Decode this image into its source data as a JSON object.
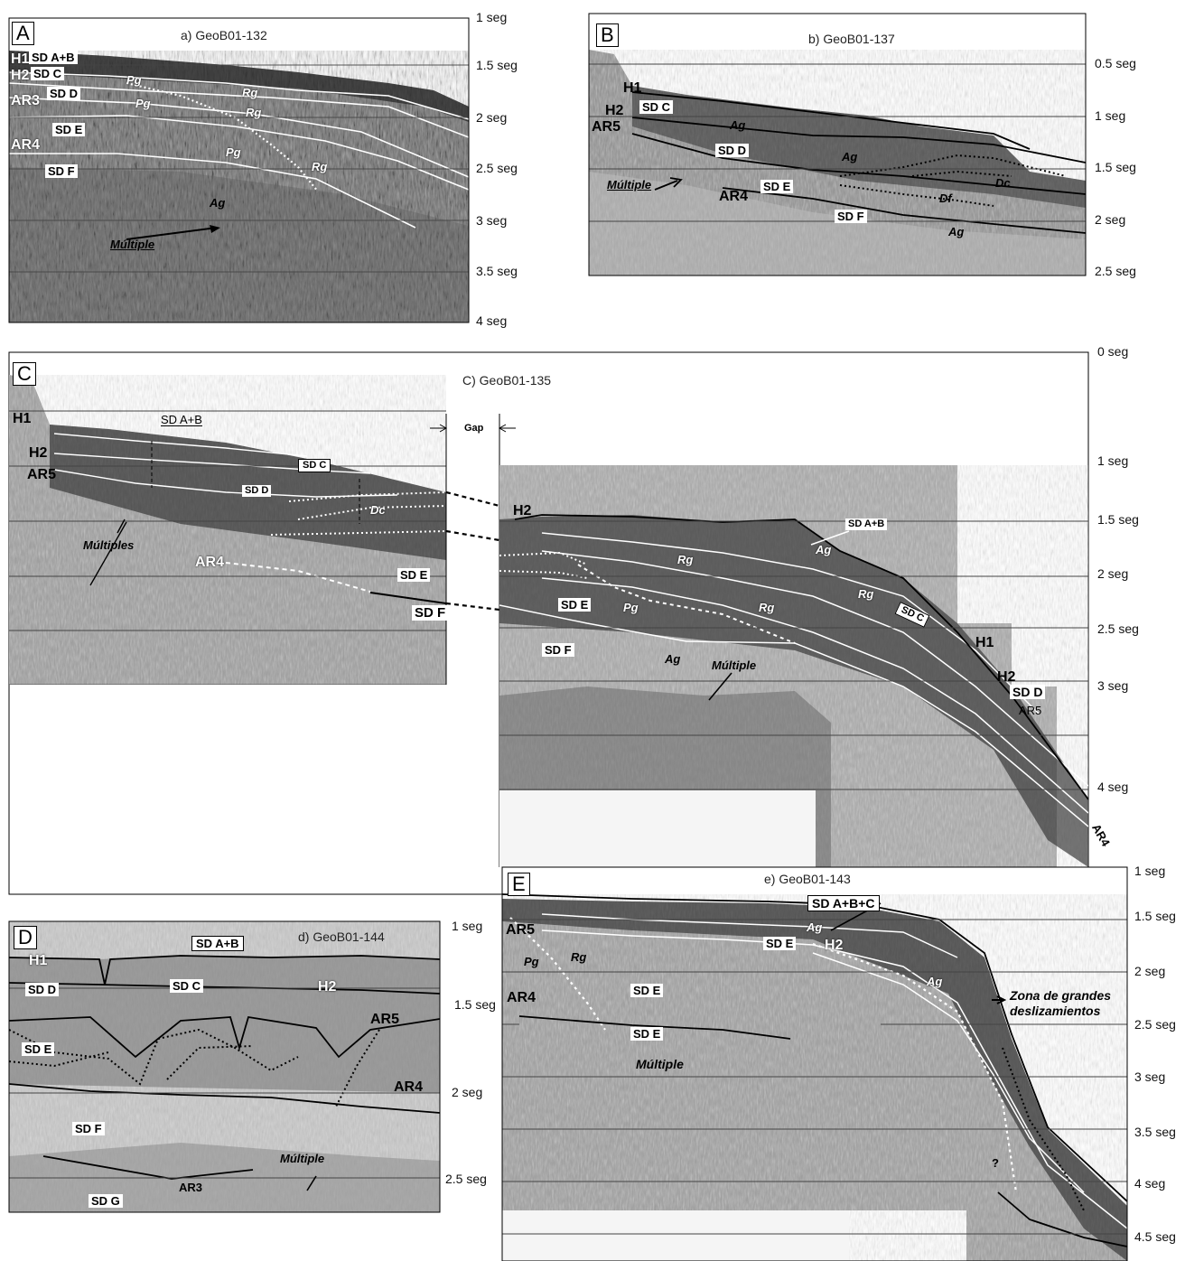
{
  "panels": {
    "A": {
      "letter": "A",
      "title": "a) GeoB01-132",
      "ticks": [
        "1 seg",
        "1.5 seg",
        "2 seg",
        "2.5 seg",
        "3 seg",
        "3.5 seg",
        "4 seg"
      ],
      "labels": {
        "sd_ab": "SD A+B",
        "sd_c": "SD C",
        "sd_d": "SD D",
        "sd_e": "SD E",
        "sd_f": "SD F",
        "h1": "H1",
        "h2": "H2",
        "ar3": "AR3",
        "ar4": "AR4",
        "pg1": "Pg",
        "pg2": "Pg",
        "pg3": "Pg",
        "rg1": "Rg",
        "rg2": "Rg",
        "rg3": "Rg",
        "ag": "Ag",
        "multiple": "Múltiple"
      }
    },
    "B": {
      "letter": "B",
      "title": "b) GeoB01-137",
      "ticks": [
        "0.5 seg",
        "1 seg",
        "1.5 seg",
        "2 seg",
        "2.5 seg"
      ],
      "labels": {
        "h1": "H1",
        "h2": "H2",
        "ar5": "AR5",
        "ar4": "AR4",
        "sd_c": "SD C",
        "sd_d": "SD D",
        "sd_e": "SD E",
        "sd_f": "SD F",
        "ag1": "Ag",
        "ag2": "Ag",
        "ag3": "Ag",
        "dc": "Dc",
        "df": "Df",
        "multiple": "Múltiple"
      }
    },
    "C": {
      "letter": "C",
      "title": "C) GeoB01-135",
      "gap": "Gap",
      "ticks": [
        "0 seg",
        "1 seg",
        "1.5 seg",
        "2 seg",
        "2.5 seg",
        "3 seg",
        "4 seg"
      ],
      "labels": {
        "h1": "H1",
        "h2": "H2",
        "ar5": "AR5",
        "ar4": "AR4",
        "sd_ab": "SD A+B",
        "sd_c": "SD C",
        "sd_d": "SD D",
        "dc": "Dc",
        "multiples": "Múltiples",
        "sd_e": "SD E",
        "sd_f": "SD F",
        "h2r": "H2",
        "sd_ab_r": "SD A+B",
        "ag_r1": "Ag",
        "rg_r1": "Rg",
        "rg_r2": "Rg",
        "rg_r3": "Rg",
        "pg_r": "Pg",
        "sd_e_r": "SD E",
        "sd_f_r": "SD F",
        "sd_c_r": "SD C",
        "ag_r2": "Ag",
        "multiple_r": "Múltiple",
        "h1_r": "H1",
        "h2_r2": "H2",
        "sd_d_r": "SD D",
        "ar5_r": "AR5",
        "ar4_r": "AR4"
      }
    },
    "D": {
      "letter": "D",
      "title": "d) GeoB01-144",
      "ticks": [
        "1 seg",
        "1.5 seg",
        "2 seg",
        "2.5 seg"
      ],
      "labels": {
        "sd_ab": "SD A+B",
        "h1": "H1",
        "sd_d": "SD D",
        "sd_c": "SD C",
        "h2": "H2",
        "ar5": "AR5",
        "sd_e": "SD E",
        "ar4": "AR4",
        "sd_f": "SD F",
        "multiple": "Múltiple",
        "ar3": "AR3",
        "sd_g": "SD G"
      }
    },
    "E": {
      "letter": "E",
      "title": "e) GeoB01-143",
      "ticks": [
        "1 seg",
        "1.5 seg",
        "2 seg",
        "2.5 seg",
        "3 seg",
        "3.5 seg",
        "4 seg",
        "4.5 seg"
      ],
      "labels": {
        "sd_abc": "SD A+B+C",
        "ar5": "AR5",
        "ag1": "Ag",
        "sd_e1": "SD E",
        "h2": "H2",
        "pg": "Pg",
        "rg": "Rg",
        "ag2": "Ag",
        "sd_e2": "SD E",
        "ar4": "AR4",
        "zona1": "Zona de grandes",
        "zona2": "deslizamientos",
        "sd_e3": "SD E",
        "multiple": "Múltiple",
        "q": "?"
      }
    }
  }
}
